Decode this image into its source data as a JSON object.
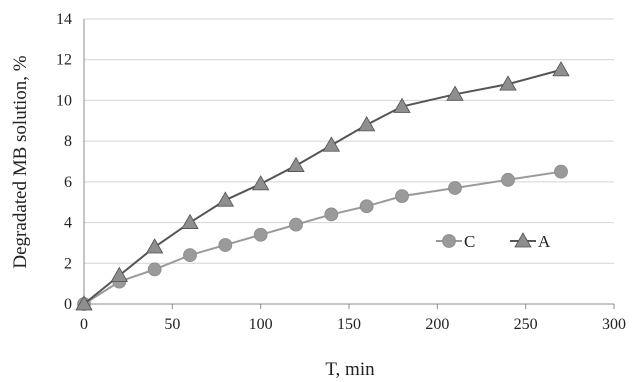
{
  "chart_data": {
    "type": "line",
    "xlabel": "T, min",
    "ylabel": "Degradated MB solution, %",
    "xlim": [
      0,
      300
    ],
    "ylim": [
      0,
      14
    ],
    "xticks": [
      0,
      50,
      100,
      150,
      200,
      250,
      300
    ],
    "yticks": [
      0,
      2,
      4,
      6,
      8,
      10,
      12,
      14
    ],
    "grid": "horizontal",
    "legend_position": "inside-bottom-right",
    "series": [
      {
        "name": "C",
        "marker": "circle",
        "color": "#9a9a9a",
        "points": [
          [
            0,
            0
          ],
          [
            20,
            1.1
          ],
          [
            40,
            1.7
          ],
          [
            60,
            2.4
          ],
          [
            80,
            2.9
          ],
          [
            100,
            3.4
          ],
          [
            120,
            3.9
          ],
          [
            140,
            4.4
          ],
          [
            160,
            4.8
          ],
          [
            180,
            5.3
          ],
          [
            210,
            5.7
          ],
          [
            240,
            6.1
          ],
          [
            270,
            6.5
          ]
        ]
      },
      {
        "name": "A",
        "marker": "triangle",
        "color": "#555555",
        "points": [
          [
            0,
            0
          ],
          [
            20,
            1.4
          ],
          [
            40,
            2.8
          ],
          [
            60,
            4.0
          ],
          [
            80,
            5.1
          ],
          [
            100,
            5.9
          ],
          [
            120,
            6.8
          ],
          [
            140,
            7.8
          ],
          [
            160,
            8.8
          ],
          [
            180,
            9.7
          ],
          [
            210,
            10.3
          ],
          [
            240,
            10.8
          ],
          [
            270,
            11.5
          ]
        ]
      }
    ]
  }
}
